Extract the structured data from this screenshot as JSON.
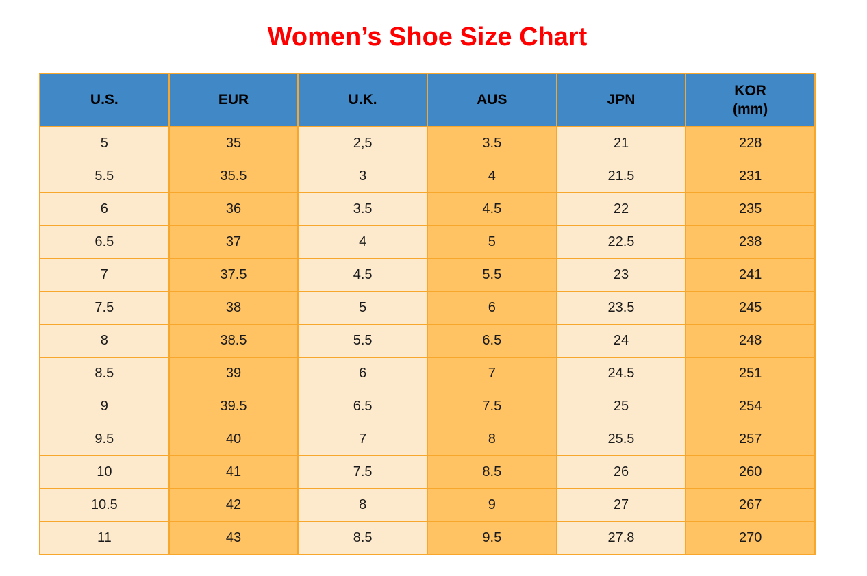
{
  "page": {
    "title": "Women’s Shoe Size Chart"
  },
  "colors": {
    "title_red": "#FF0000",
    "header_bg": "#4189C6",
    "header_text": "#000000",
    "col_light": "#FDEACD",
    "col_orange": "#FFC364",
    "border": "#F6A72C",
    "cell_text": "#1A1A1A"
  },
  "table": {
    "header_lines": [
      [
        "U.S."
      ],
      [
        "EUR"
      ],
      [
        "U.K."
      ],
      [
        "AUS"
      ],
      [
        "JPN"
      ],
      [
        "KOR",
        "(mm)"
      ]
    ]
  },
  "chart_data": {
    "type": "table",
    "title": "Women’s Shoe Size Chart",
    "columns": [
      "U.S.",
      "EUR",
      "U.K.",
      "AUS",
      "JPN",
      "KOR (mm)"
    ],
    "rows": [
      [
        "5",
        "35",
        "2,5",
        "3.5",
        "21",
        "228"
      ],
      [
        "5.5",
        "35.5",
        "3",
        "4",
        "21.5",
        "231"
      ],
      [
        "6",
        "36",
        "3.5",
        "4.5",
        "22",
        "235"
      ],
      [
        "6.5",
        "37",
        "4",
        "5",
        "22.5",
        "238"
      ],
      [
        "7",
        "37.5",
        "4.5",
        "5.5",
        "23",
        "241"
      ],
      [
        "7.5",
        "38",
        "5",
        "6",
        "23.5",
        "245"
      ],
      [
        "8",
        "38.5",
        "5.5",
        "6.5",
        "24",
        "248"
      ],
      [
        "8.5",
        "39",
        "6",
        "7",
        "24.5",
        "251"
      ],
      [
        "9",
        "39.5",
        "6.5",
        "7.5",
        "25",
        "254"
      ],
      [
        "9.5",
        "40",
        "7",
        "8",
        "25.5",
        "257"
      ],
      [
        "10",
        "41",
        "7.5",
        "8.5",
        "26",
        "260"
      ],
      [
        "10.5",
        "42",
        "8",
        "9",
        "27",
        "267"
      ],
      [
        "11",
        "43",
        "8.5",
        "9.5",
        "27.8",
        "270"
      ]
    ]
  }
}
